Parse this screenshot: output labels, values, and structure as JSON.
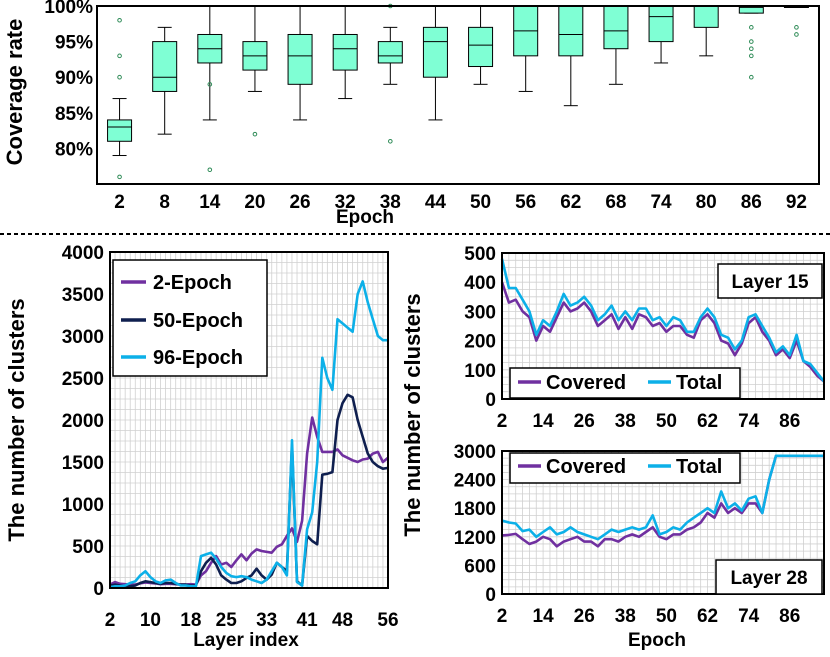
{
  "chart_data": [
    {
      "type": "box",
      "ylabel": "Coverage rate",
      "xlabel": "Epoch",
      "ylim": [
        75,
        100
      ],
      "yticks": [
        "80%",
        "85%",
        "90%",
        "95%",
        "100%"
      ],
      "box_color": "#7fffd4",
      "categories": [
        "2",
        "8",
        "14",
        "20",
        "26",
        "32",
        "38",
        "44",
        "50",
        "56",
        "62",
        "68",
        "74",
        "80",
        "86",
        "92"
      ],
      "boxes": [
        {
          "min": 79,
          "q1": 81,
          "median": 83,
          "q3": 84,
          "max": 87,
          "outliers": [
            76,
            90,
            93,
            98
          ]
        },
        {
          "min": 82,
          "q1": 88,
          "median": 90,
          "q3": 95,
          "max": 97,
          "outliers": []
        },
        {
          "min": 84,
          "q1": 92,
          "median": 94,
          "q3": 96,
          "max": 100,
          "outliers": [
            77,
            89
          ]
        },
        {
          "min": 88,
          "q1": 91,
          "median": 93,
          "q3": 95,
          "max": 100,
          "outliers": [
            82
          ]
        },
        {
          "min": 84,
          "q1": 89,
          "median": 93,
          "q3": 96,
          "max": 100,
          "outliers": []
        },
        {
          "min": 87,
          "q1": 91,
          "median": 94,
          "q3": 96,
          "max": 100,
          "outliers": []
        },
        {
          "min": 89,
          "q1": 92,
          "median": 93,
          "q3": 95,
          "max": 97,
          "outliers": [
            81,
            100
          ]
        },
        {
          "min": 84,
          "q1": 90,
          "median": 95,
          "q3": 97,
          "max": 100,
          "outliers": []
        },
        {
          "min": 89,
          "q1": 91.5,
          "median": 94.5,
          "q3": 97,
          "max": 100,
          "outliers": []
        },
        {
          "min": 88,
          "q1": 93,
          "median": 96.5,
          "q3": 100,
          "max": 100,
          "outliers": []
        },
        {
          "min": 86,
          "q1": 93,
          "median": 96,
          "q3": 100,
          "max": 100,
          "outliers": []
        },
        {
          "min": 89,
          "q1": 94,
          "median": 96.5,
          "q3": 100,
          "max": 100,
          "outliers": []
        },
        {
          "min": 92,
          "q1": 95,
          "median": 98.5,
          "q3": 100,
          "max": 100,
          "outliers": []
        },
        {
          "min": 93,
          "q1": 97,
          "median": 100,
          "q3": 100,
          "max": 100,
          "outliers": []
        },
        {
          "min": 99,
          "q1": 99,
          "median": 99.8,
          "q3": 100,
          "max": 100,
          "outliers": [
            90,
            93,
            94,
            95,
            97
          ]
        },
        {
          "min": 100,
          "q1": 100,
          "median": 100,
          "q3": 100,
          "max": 100,
          "outliers": [
            96,
            97
          ]
        }
      ]
    },
    {
      "type": "line",
      "ylabel": "The number of clusters",
      "xlabel": "Layer index",
      "ylim": [
        0,
        4000
      ],
      "yticks": [
        "0",
        "500",
        "1000",
        "1500",
        "2000",
        "2500",
        "3000",
        "3500",
        "4000"
      ],
      "xticks": [
        "2",
        "10",
        "18",
        "25",
        "33",
        "41",
        "48",
        "56"
      ],
      "x": [
        1,
        2,
        3,
        4,
        5,
        6,
        7,
        8,
        9,
        10,
        11,
        12,
        13,
        14,
        15,
        16,
        17,
        18,
        19,
        20,
        21,
        22,
        23,
        24,
        25,
        26,
        27,
        28,
        29,
        30,
        31,
        32,
        33,
        34,
        35,
        36,
        37,
        38,
        39,
        40,
        41,
        42,
        43,
        44,
        45,
        46,
        47,
        48,
        49,
        50,
        51,
        52,
        53,
        54,
        55,
        56
      ],
      "series": [
        {
          "name": "2-Epoch",
          "color": "#7030a0",
          "values": [
            40,
            70,
            50,
            45,
            40,
            40,
            55,
            65,
            60,
            55,
            45,
            50,
            50,
            45,
            40,
            40,
            45,
            40,
            150,
            200,
            300,
            380,
            280,
            300,
            250,
            330,
            400,
            330,
            410,
            460,
            440,
            430,
            420,
            490,
            520,
            620,
            710,
            550,
            800,
            1600,
            2030,
            1800,
            1620,
            1620,
            1620,
            1650,
            1580,
            1550,
            1520,
            1500,
            1530,
            1540,
            1600,
            1620,
            1500,
            1550
          ]
        },
        {
          "name": "50-Epoch",
          "color": "#0f1f4f",
          "values": [
            30,
            40,
            30,
            25,
            20,
            30,
            60,
            80,
            70,
            60,
            50,
            60,
            60,
            50,
            40,
            40,
            30,
            30,
            200,
            300,
            360,
            280,
            150,
            100,
            60,
            60,
            80,
            120,
            150,
            230,
            150,
            100,
            160,
            300,
            250,
            200,
            1700,
            80,
            30,
            620,
            560,
            520,
            1350,
            1360,
            1380,
            2000,
            2200,
            2300,
            2270,
            2000,
            1800,
            1600,
            1500,
            1450,
            1420,
            1430
          ]
        },
        {
          "name": "96-Epoch",
          "color": "#0cb0e8",
          "values": [
            10,
            20,
            20,
            30,
            60,
            80,
            150,
            200,
            130,
            80,
            60,
            90,
            100,
            60,
            30,
            30,
            20,
            20,
            380,
            400,
            420,
            350,
            250,
            180,
            140,
            130,
            140,
            130,
            100,
            80,
            60,
            100,
            200,
            300,
            250,
            150,
            1760,
            70,
            30,
            700,
            900,
            1500,
            2740,
            2500,
            2360,
            3200,
            3150,
            3100,
            3050,
            3500,
            3650,
            3400,
            3200,
            3000,
            2950,
            2950
          ]
        }
      ]
    },
    {
      "type": "line",
      "title": "Layer 15",
      "ylabel": "The number of clusters",
      "ylim": [
        0,
        500
      ],
      "yticks": [
        "0",
        "100",
        "200",
        "300",
        "400",
        "500"
      ],
      "xticks": [
        "2",
        "14",
        "26",
        "38",
        "50",
        "62",
        "74",
        "86"
      ],
      "x": [
        2,
        4,
        6,
        8,
        10,
        12,
        14,
        16,
        18,
        20,
        22,
        24,
        26,
        28,
        30,
        32,
        34,
        36,
        38,
        40,
        42,
        44,
        46,
        48,
        50,
        52,
        54,
        56,
        58,
        60,
        62,
        64,
        66,
        68,
        70,
        72,
        74,
        76,
        78,
        80,
        82,
        84,
        86,
        88,
        90,
        92,
        94,
        96
      ],
      "series": [
        {
          "name": "Covered",
          "color": "#7030a0",
          "values": [
            400,
            330,
            340,
            300,
            280,
            200,
            250,
            230,
            280,
            330,
            300,
            310,
            330,
            300,
            250,
            270,
            290,
            240,
            280,
            240,
            290,
            280,
            250,
            260,
            230,
            250,
            250,
            220,
            210,
            270,
            290,
            260,
            200,
            190,
            150,
            190,
            260,
            280,
            230,
            200,
            150,
            170,
            140,
            200,
            130,
            110,
            80,
            60
          ]
        },
        {
          "name": "Total",
          "color": "#0cb0e8",
          "values": [
            480,
            380,
            380,
            340,
            300,
            220,
            270,
            250,
            300,
            360,
            320,
            330,
            350,
            320,
            270,
            290,
            320,
            270,
            300,
            270,
            310,
            310,
            270,
            280,
            250,
            280,
            270,
            230,
            230,
            280,
            310,
            280,
            220,
            210,
            170,
            200,
            280,
            290,
            250,
            210,
            160,
            180,
            150,
            220,
            130,
            120,
            90,
            60
          ]
        }
      ]
    },
    {
      "type": "line",
      "title": "Layer 28",
      "xlabel": "Epoch",
      "ylim": [
        0,
        3000
      ],
      "yticks": [
        "0",
        "600",
        "1200",
        "1800",
        "2400",
        "3000"
      ],
      "xticks": [
        "2",
        "14",
        "26",
        "38",
        "50",
        "62",
        "74",
        "86"
      ],
      "x": [
        2,
        4,
        6,
        8,
        10,
        12,
        14,
        16,
        18,
        20,
        22,
        24,
        26,
        28,
        30,
        32,
        34,
        36,
        38,
        40,
        42,
        44,
        46,
        48,
        50,
        52,
        54,
        56,
        58,
        60,
        62,
        64,
        66,
        68,
        70,
        72,
        74,
        76,
        78,
        80,
        82,
        84,
        86,
        88,
        90,
        92,
        94,
        96
      ],
      "series": [
        {
          "name": "Covered",
          "color": "#7030a0",
          "values": [
            1230,
            1240,
            1260,
            1150,
            1050,
            1100,
            1200,
            1150,
            1000,
            1100,
            1150,
            1200,
            1100,
            1100,
            1000,
            1150,
            1150,
            1100,
            1200,
            1250,
            1200,
            1300,
            1400,
            1200,
            1150,
            1250,
            1250,
            1350,
            1400,
            1500,
            1700,
            1600,
            1900,
            1700,
            1800,
            1700,
            1900,
            1900,
            1700,
            2400,
            2900,
            2900,
            2900,
            2900,
            2900,
            2900,
            2900,
            2900
          ]
        },
        {
          "name": "Total",
          "color": "#0cb0e8",
          "values": [
            1540,
            1500,
            1480,
            1320,
            1350,
            1200,
            1300,
            1400,
            1250,
            1300,
            1400,
            1300,
            1250,
            1200,
            1150,
            1250,
            1350,
            1300,
            1350,
            1400,
            1350,
            1400,
            1650,
            1250,
            1300,
            1400,
            1350,
            1500,
            1600,
            1700,
            1800,
            1700,
            2150,
            1800,
            1900,
            1750,
            2000,
            2050,
            1700,
            2400,
            2900,
            2900,
            2900,
            2900,
            2900,
            2900,
            2900,
            2900
          ]
        }
      ]
    }
  ]
}
